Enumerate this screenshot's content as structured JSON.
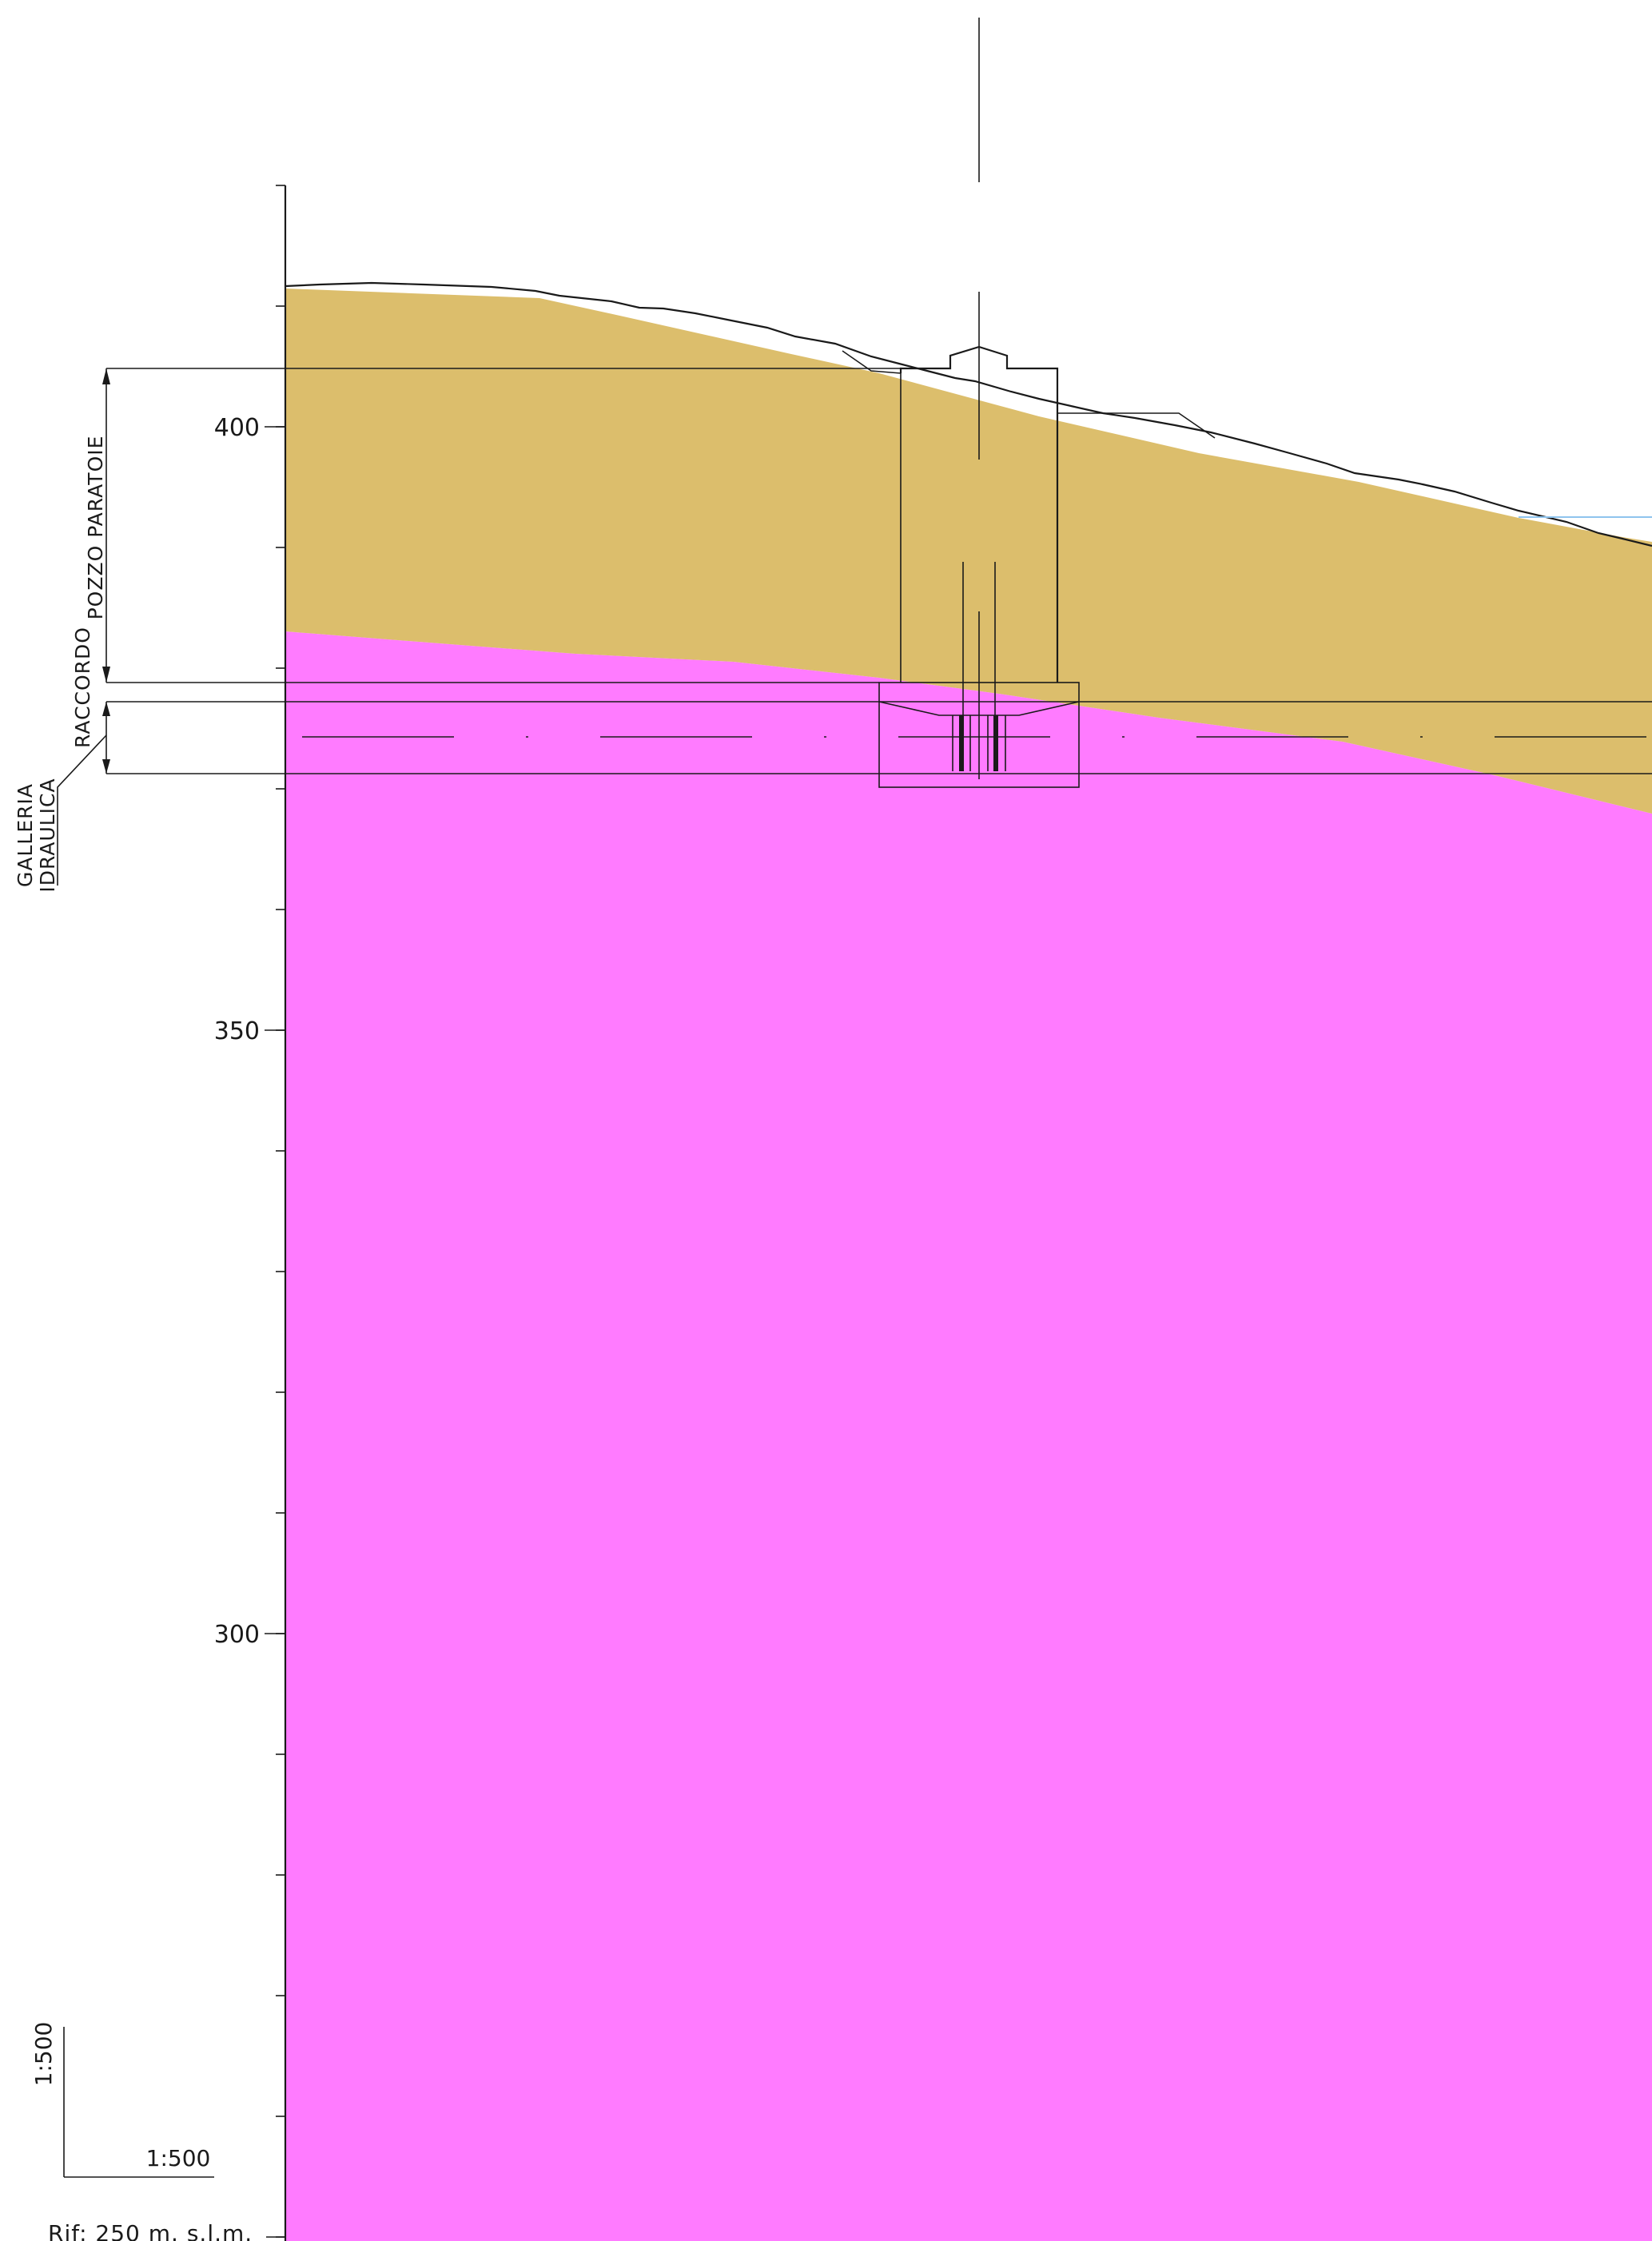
{
  "axis": {
    "ticks": [
      {
        "value": 400,
        "label": "400"
      },
      {
        "value": 350,
        "label": "350"
      },
      {
        "value": 300,
        "label": "300"
      }
    ]
  },
  "labels": {
    "pozzo": "POZZO  PARATOIE",
    "raccordo": "RACCORDO",
    "galleria_line1": "GALLERIA",
    "galleria_line2": "IDRAULICA",
    "scale_vertical": "1:500",
    "scale_horizontal": "1:500",
    "reference": "Rif:  250  m. s.l.m."
  },
  "colors": {
    "upper_layer": "#DCBE6C",
    "lower_layer": "#FF7BFF",
    "line": "#1a1a1a",
    "water_line": "#8fc4ee"
  }
}
